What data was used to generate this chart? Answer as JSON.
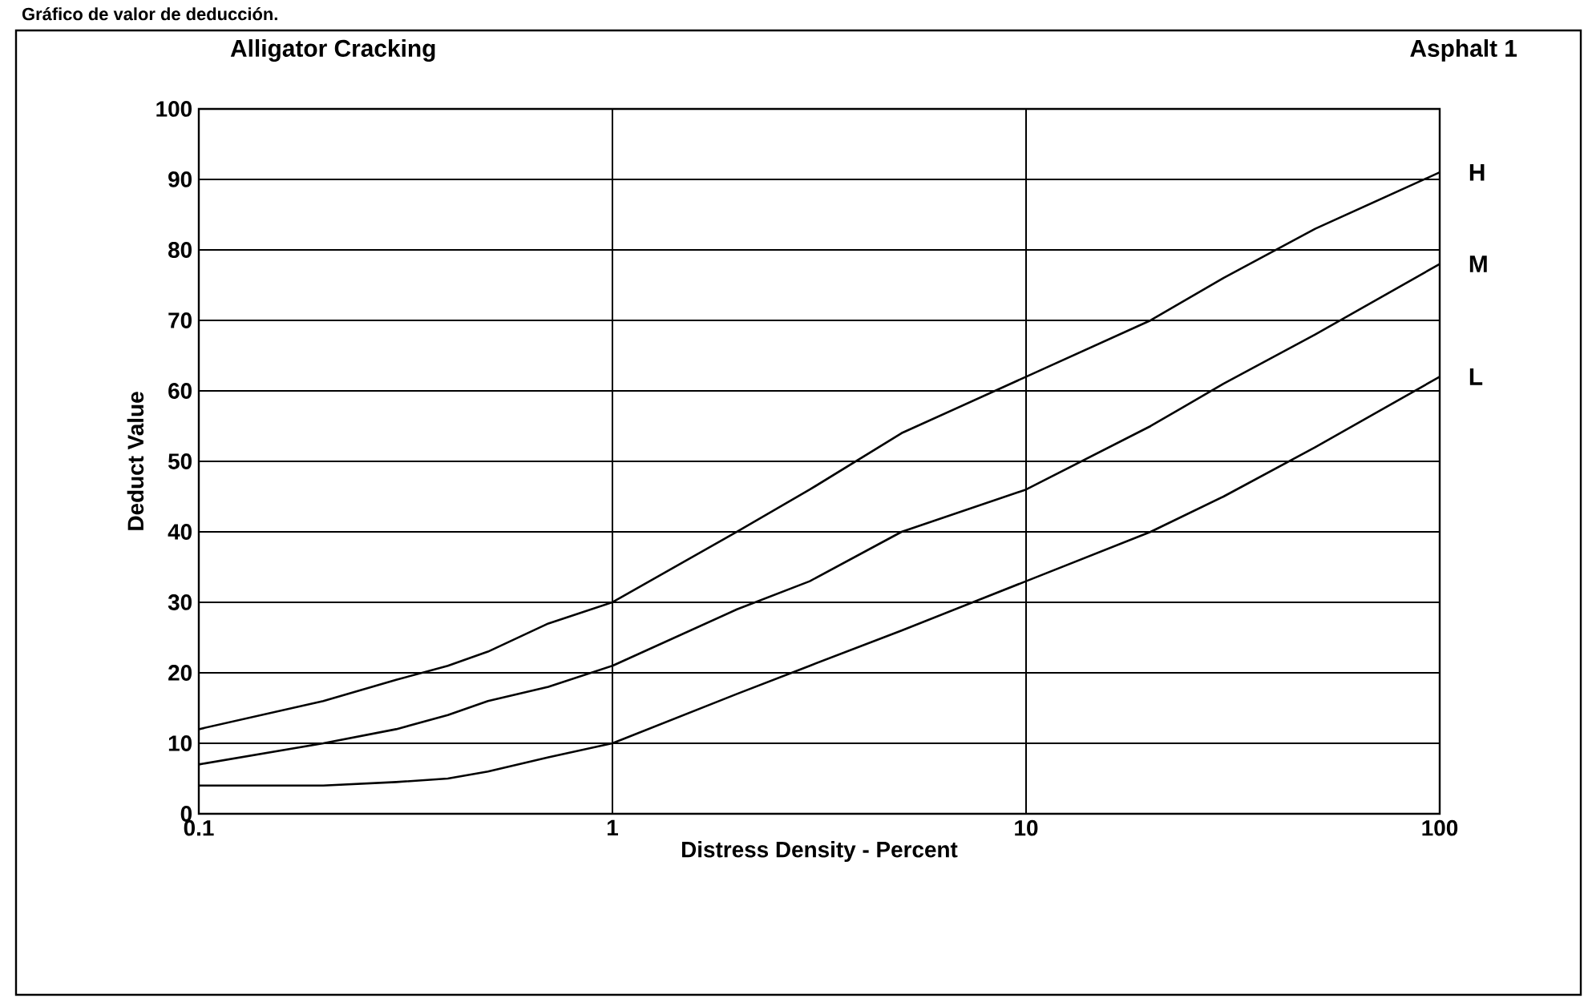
{
  "chart_data": {
    "type": "line",
    "title": "Gráfico de valor de deducción.",
    "subtitle": "Alligator Cracking",
    "annotations": [
      "Asphalt 1"
    ],
    "xlabel": "Distress Density - Percent",
    "ylabel": "Deduct Value",
    "log": "x",
    "grid": true,
    "xlim": [
      0.1,
      100
    ],
    "ylim": [
      0,
      100
    ],
    "xticks": [
      0.1,
      1,
      10,
      100
    ],
    "yticks": [
      0,
      10,
      20,
      30,
      40,
      50,
      60,
      70,
      80,
      90,
      100
    ],
    "x": [
      0.1,
      0.2,
      0.3,
      0.4,
      0.5,
      0.7,
      1,
      2,
      3,
      5,
      10,
      20,
      30,
      50,
      100
    ],
    "series": [
      {
        "name": "H",
        "color": "#000000",
        "values": [
          12,
          16,
          19,
          21,
          23,
          27,
          30,
          40,
          46,
          54,
          62,
          70,
          76,
          83,
          91
        ]
      },
      {
        "name": "M",
        "color": "#000000",
        "values": [
          7,
          10,
          12,
          14,
          16,
          18,
          21,
          29,
          33,
          40,
          46,
          55,
          61,
          68,
          78
        ]
      },
      {
        "name": "L",
        "color": "#000000",
        "values": [
          4,
          4,
          4.5,
          5,
          6,
          8,
          10,
          17,
          21,
          26,
          33,
          40,
          45,
          52,
          62
        ]
      }
    ]
  }
}
